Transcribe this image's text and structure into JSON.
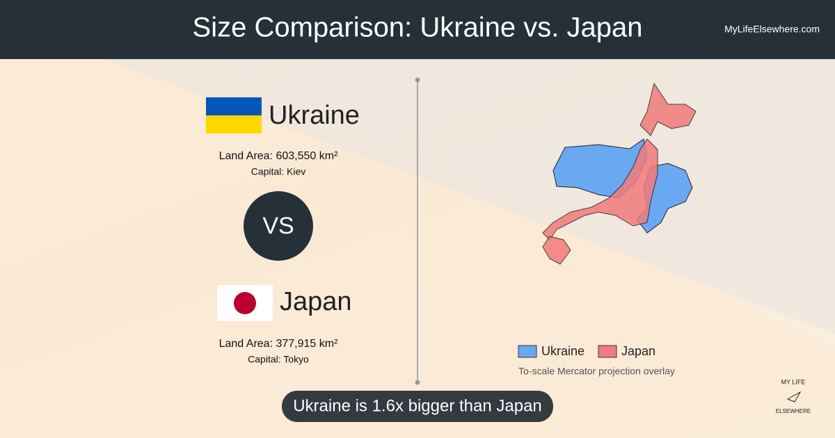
{
  "header": {
    "title": "Size Comparison: Ukraine vs. Japan",
    "site": "MyLifeElsewhere.com"
  },
  "countries": [
    {
      "name": "Ukraine",
      "land_area": "Land Area: 603,550 km²",
      "capital": "Capital: Kiev"
    },
    {
      "name": "Japan",
      "land_area": "Land Area: 377,915 km²",
      "capital": "Capital: Tokyo"
    }
  ],
  "vs": "VS",
  "legend": [
    {
      "label": "Ukraine",
      "color": "#6aa9f2"
    },
    {
      "label": "Japan",
      "color": "#f27c7c"
    }
  ],
  "note": "To-scale Mercator projection overlay",
  "summary": "Ukraine is 1.6x bigger than Japan",
  "logo": {
    "top": "MY LIFE",
    "bottom": "ELSEWHERE"
  }
}
